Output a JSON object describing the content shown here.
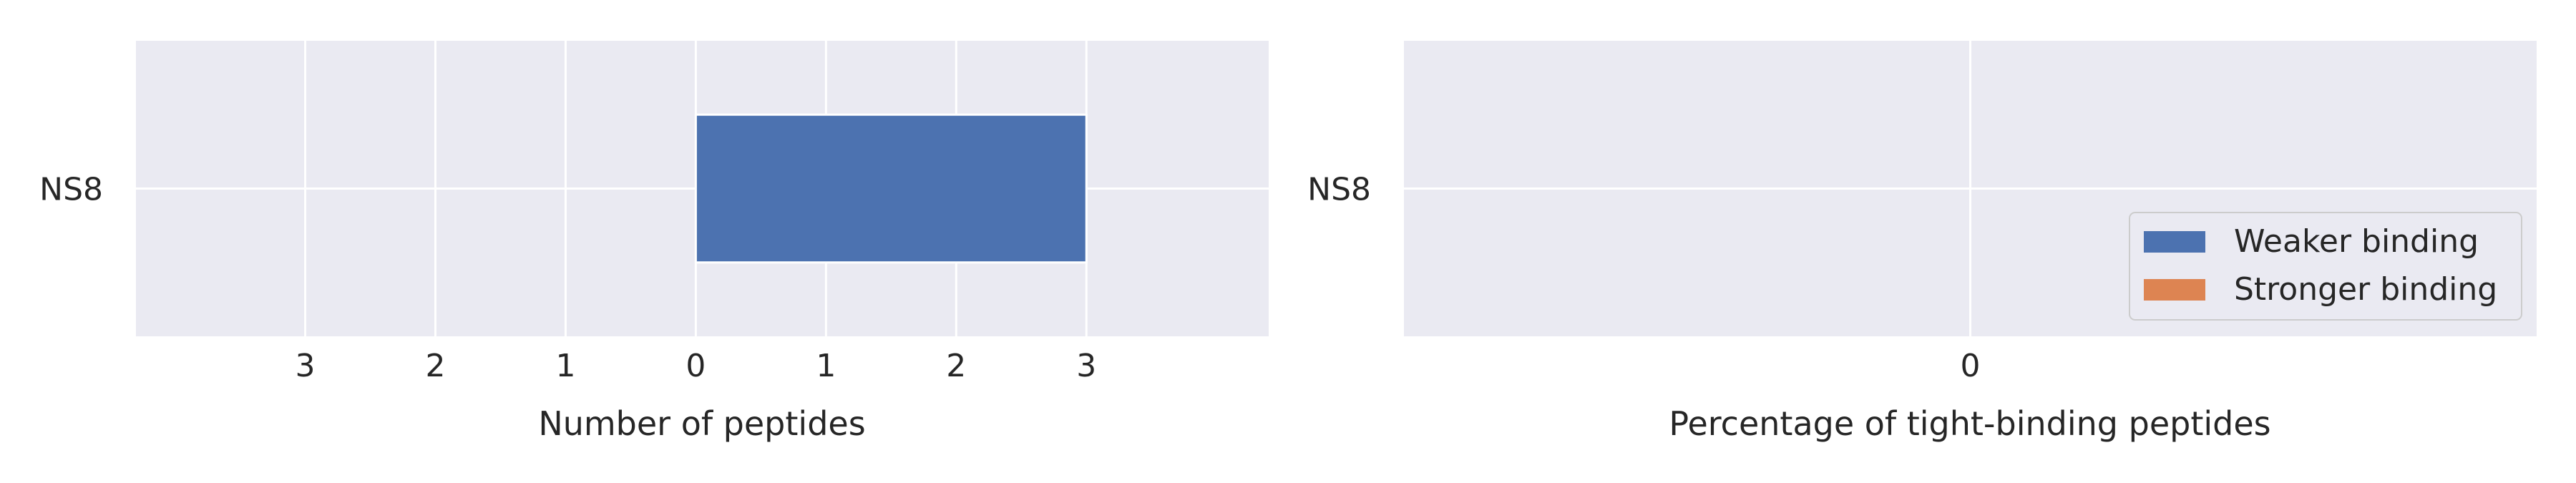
{
  "colors": {
    "panel_background": "#EAEAF2",
    "grid": "#FFFFFF",
    "weaker_binding": "#4C72B0",
    "stronger_binding": "#DD8452",
    "text": "#262626"
  },
  "chart_data": [
    {
      "type": "bar",
      "orientation": "horizontal",
      "diverging": true,
      "categories": [
        "NS8"
      ],
      "xlabel": "Number of peptides",
      "ylabel": "",
      "xlim": [
        -4.3,
        4.4
      ],
      "x_ticks": [
        -3,
        -2,
        -1,
        0,
        1,
        2,
        3
      ],
      "x_tick_labels": [
        "3",
        "2",
        "1",
        "0",
        "1",
        "2",
        "3"
      ],
      "grid": true,
      "series": [
        {
          "name": "Weaker binding",
          "values": [
            3
          ],
          "color": "#4C72B0"
        },
        {
          "name": "Stronger binding",
          "values": [
            0
          ],
          "color": "#DD8452"
        }
      ]
    },
    {
      "type": "bar",
      "orientation": "horizontal",
      "categories": [
        "NS8"
      ],
      "xlabel": "Percentage of tight-binding peptides",
      "ylabel": "",
      "xlim": [
        -1,
        1
      ],
      "x_ticks": [
        0
      ],
      "x_tick_labels": [
        "0"
      ],
      "grid": true,
      "legend": {
        "placement": "lower-right",
        "entries": [
          {
            "label": "Weaker binding",
            "color": "#4C72B0"
          },
          {
            "label": "Stronger binding",
            "color": "#DD8452"
          }
        ]
      }
    }
  ]
}
